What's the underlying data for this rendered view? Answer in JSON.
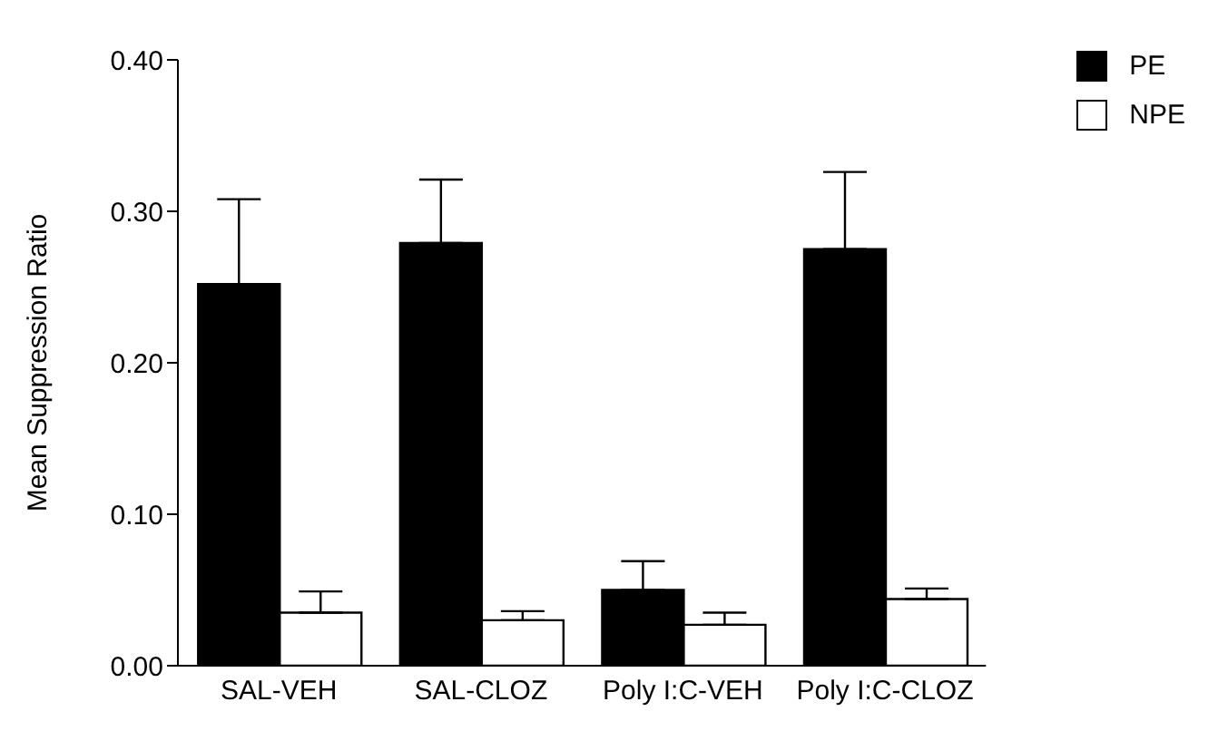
{
  "chart_data": {
    "type": "bar",
    "ylabel": "Mean Suppression Ratio",
    "categories": [
      "SAL-VEH",
      "SAL-CLOZ",
      "Poly I:C-VEH",
      "Poly I:C-CLOZ"
    ],
    "series": [
      {
        "name": "PE",
        "color": "#000000",
        "values": [
          0.252,
          0.279,
          0.05,
          0.275
        ],
        "errors": [
          [
            0.252,
            0.308
          ],
          [
            0.279,
            0.321
          ],
          [
            0.05,
            0.069
          ],
          [
            0.275,
            0.326
          ]
        ]
      },
      {
        "name": "NPE",
        "color": "#ffffff",
        "values": [
          0.035,
          0.03,
          0.027,
          0.044
        ],
        "errors": [
          [
            0.035,
            0.049
          ],
          [
            0.03,
            0.036
          ],
          [
            0.027,
            0.035
          ],
          [
            0.044,
            0.051
          ]
        ]
      }
    ],
    "ylim": [
      0,
      0.4
    ],
    "yticks": [
      {
        "value": 0,
        "label": "0.00"
      },
      {
        "value": 0.1,
        "label": "0.10"
      },
      {
        "value": 0.2,
        "label": "0.20"
      },
      {
        "value": 0.3,
        "label": "0.30"
      },
      {
        "value": 0.4,
        "label": "0.40"
      }
    ],
    "grid": false,
    "legend": "top right"
  }
}
